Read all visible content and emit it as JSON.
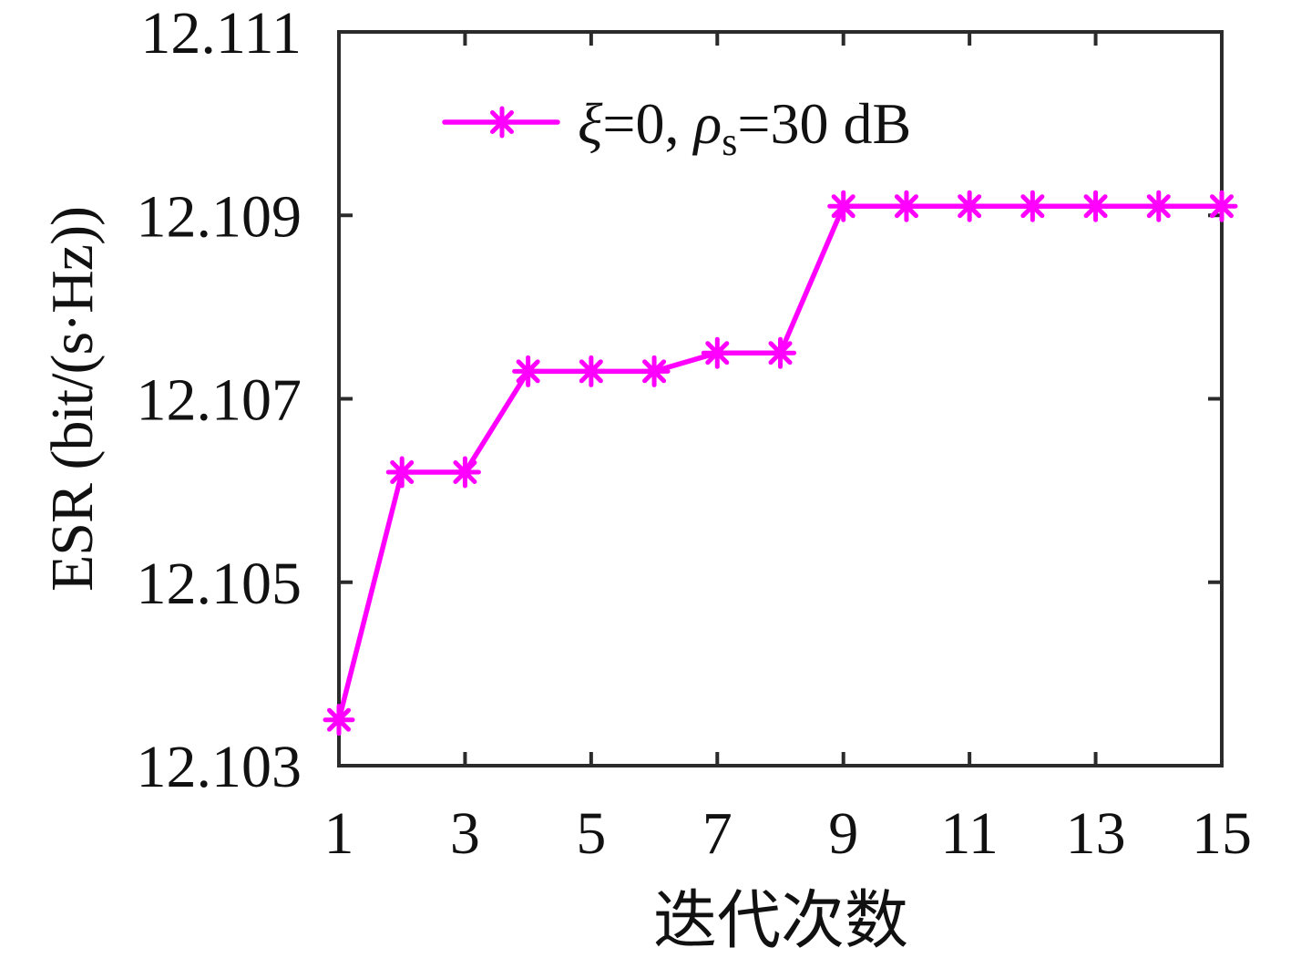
{
  "figure": {
    "background": "#ffffff"
  },
  "chart_data": {
    "type": "line",
    "title": "",
    "xlabel": "迭代次数",
    "ylabel": "ESR (bit/(s·Hz))",
    "x": [
      1,
      2,
      3,
      4,
      5,
      6,
      7,
      8,
      9,
      10,
      11,
      12,
      13,
      14,
      15
    ],
    "series": [
      {
        "name": "ξ=0, ρs=30 dB",
        "color": "#ff00ff",
        "marker": "asterisk",
        "values": [
          12.1035,
          12.1062,
          12.1062,
          12.1073,
          12.1073,
          12.1073,
          12.1075,
          12.1075,
          12.1091,
          12.1091,
          12.1091,
          12.1091,
          12.1091,
          12.1091,
          12.1091
        ]
      }
    ],
    "xlim": [
      1,
      15
    ],
    "ylim": [
      12.103,
      12.111
    ],
    "xticks": [
      1,
      3,
      5,
      7,
      9,
      11,
      13,
      15
    ],
    "xtick_labels": [
      "1",
      "3",
      "5",
      "7",
      "9",
      "11",
      "13",
      "15"
    ],
    "yticks": [
      12.103,
      12.105,
      12.107,
      12.109,
      12.111
    ],
    "ytick_labels": [
      "12.103",
      "12.105",
      "12.107",
      "12.109",
      "12.111"
    ],
    "grid": false,
    "legend_position": "inside-top-center",
    "colors": {
      "series": "#ff00ff",
      "axis": "#2b2b2b",
      "text": "#111111"
    }
  },
  "legend": {
    "label_full": "ξ=0, ρs=30 dB",
    "parts": {
      "var1": "ξ",
      "eq1": "=0, ",
      "var2": "ρ",
      "sub": "s",
      "eq2": "=30 dB"
    }
  }
}
